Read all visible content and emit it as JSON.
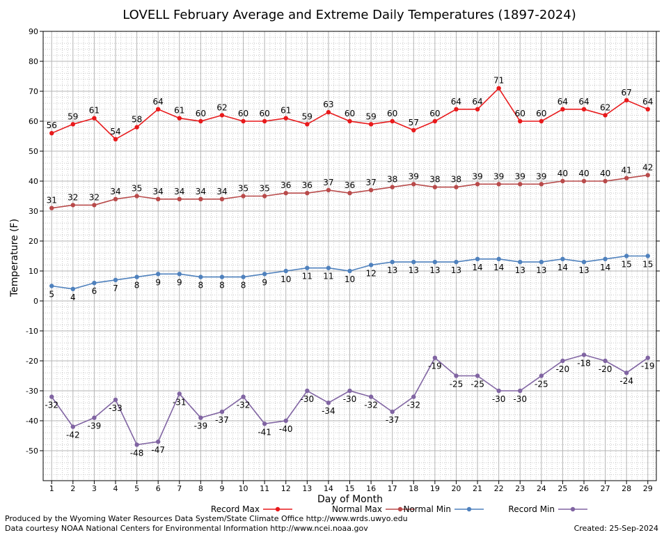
{
  "chart_data": {
    "type": "line",
    "title": "LOVELL February Average and Extreme Daily Temperatures (1897-2024)",
    "xlabel": "Day of Month",
    "ylabel": "Temperature (F)",
    "x": [
      1,
      2,
      3,
      4,
      5,
      6,
      7,
      8,
      9,
      10,
      11,
      12,
      13,
      14,
      15,
      16,
      17,
      18,
      19,
      20,
      21,
      22,
      23,
      24,
      25,
      26,
      27,
      28,
      29
    ],
    "xlim": [
      0.6,
      29.4
    ],
    "ylim": [
      -60,
      90
    ],
    "yticks": [
      -50,
      -40,
      -30,
      -20,
      -10,
      0,
      10,
      20,
      30,
      40,
      50,
      60,
      70,
      80,
      90
    ],
    "grid": true,
    "legend_position": "bottom",
    "series": [
      {
        "name": "Record Max",
        "color": "#e8191b",
        "values": [
          56,
          59,
          61,
          54,
          58,
          64,
          61,
          60,
          62,
          60,
          60,
          61,
          59,
          63,
          60,
          59,
          60,
          57,
          60,
          64,
          64,
          71,
          60,
          60,
          64,
          64,
          62,
          67,
          64
        ]
      },
      {
        "name": "Normal Max",
        "color": "#b84a4a",
        "values": [
          31,
          32,
          32,
          34,
          35,
          34,
          34,
          34,
          34,
          35,
          35,
          36,
          36,
          37,
          36,
          37,
          38,
          39,
          38,
          38,
          39,
          39,
          39,
          39,
          40,
          40,
          40,
          41,
          42
        ]
      },
      {
        "name": "Normal Min",
        "color": "#4f81bd",
        "values": [
          5,
          4,
          6,
          7,
          8,
          9,
          9,
          8,
          8,
          8,
          9,
          10,
          11,
          11,
          10,
          12,
          13,
          13,
          13,
          13,
          14,
          14,
          13,
          13,
          14,
          13,
          14,
          15,
          15
        ]
      },
      {
        "name": "Record Min",
        "color": "#8064a2",
        "values": [
          -32,
          -42,
          -39,
          -33,
          -48,
          -47,
          -31,
          -39,
          -37,
          -32,
          -41,
          -40,
          -30,
          -34,
          -30,
          -32,
          -37,
          -32,
          -19,
          -25,
          -25,
          -30,
          -30,
          -25,
          -20,
          -18,
          -20,
          -24,
          -19
        ]
      }
    ]
  },
  "footer": {
    "produced_by": "Produced by the Wyoming Water Resources Data System/State Climate Office http://www.wrds.uwyo.edu",
    "data_courtesy": "Data courtesy NOAA National Centers for Environmental Information http://www.ncei.noaa.gov",
    "created": "Created:  25-Sep-2024"
  }
}
